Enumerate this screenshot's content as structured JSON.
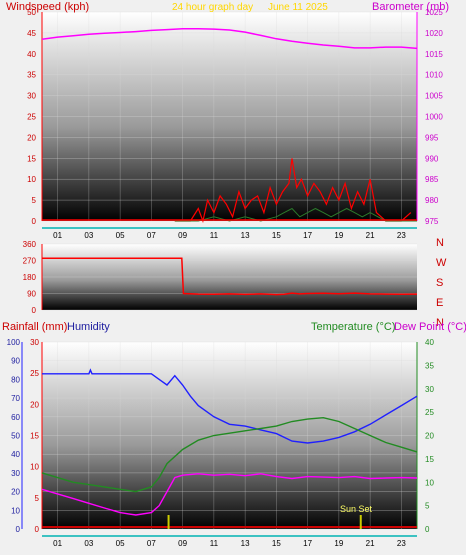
{
  "header": {
    "wind_label": "Windspeed (kph)",
    "title": "24 hour graph day",
    "date": "June 11 2025",
    "baro_label": "Barometer (mb)"
  },
  "bottom_header": {
    "rain_label": "Rainfall (mm)",
    "humidity_label": "Humidity",
    "temp_label": "Temperature (°C)",
    "dew_label": "Dew Point (°C)"
  },
  "colors": {
    "wind": "#ff0000",
    "gust": "#ff0000",
    "barometer": "#ff00ff",
    "direction": "#ff0000",
    "rain": "#cc0000",
    "humidity": "#2020ff",
    "temperature": "#228b22",
    "dew_point": "#ff00ff",
    "sun": "#cccc00",
    "title": "#ffd700",
    "axis_teal": "#00b3b3"
  },
  "chart_data": [
    {
      "type": "line",
      "title": "24 hour graph day",
      "subtitle": "June 11 2025",
      "x_tick_labels": [
        "01",
        "03",
        "05",
        "07",
        "09",
        "11",
        "13",
        "15",
        "17",
        "19",
        "21",
        "23"
      ],
      "xlim": [
        0,
        24
      ],
      "ylabel": "Windspeed (kph)",
      "ylim": [
        0,
        50
      ],
      "y_ticks": [
        0,
        5,
        10,
        15,
        20,
        25,
        30,
        35,
        40,
        45,
        50
      ],
      "y2label": "Barometer (mb)",
      "y2lim": [
        975,
        1025
      ],
      "y2_ticks": [
        975,
        980,
        985,
        990,
        995,
        1000,
        1005,
        1010,
        1015,
        1020,
        1025
      ],
      "grid": true,
      "series": [
        {
          "name": "Barometer (mb)",
          "axis": "right",
          "x": [
            0,
            1,
            2,
            3,
            4,
            5,
            6,
            7,
            8,
            9,
            10,
            11,
            12,
            13,
            14,
            15,
            16,
            17,
            18,
            19,
            20,
            21,
            22,
            23,
            24
          ],
          "values": [
            1018.5,
            1019,
            1019.3,
            1019.7,
            1019.9,
            1020.1,
            1020.3,
            1020.6,
            1020.8,
            1021,
            1021,
            1020.9,
            1020.7,
            1020.2,
            1019.4,
            1018.6,
            1018,
            1017.5,
            1017.1,
            1016.8,
            1016.4,
            1016.4,
            1016.6,
            1016.6,
            1016.3
          ]
        },
        {
          "name": "Wind gust",
          "axis": "left",
          "x": [
            8.5,
            9,
            9.5,
            10,
            10.3,
            10.6,
            11,
            11.4,
            11.8,
            12.2,
            12.6,
            13,
            13.4,
            13.8,
            14.2,
            14.6,
            15,
            15.4,
            15.8,
            16,
            16.3,
            16.6,
            17,
            17.4,
            17.8,
            18.2,
            18.6,
            19,
            19.4,
            19.8,
            20.2,
            20.6,
            21,
            21.4,
            22,
            23,
            23.6
          ],
          "values": [
            0,
            0,
            0,
            3,
            0,
            5,
            2,
            6,
            4,
            1,
            7,
            3,
            5,
            6,
            2,
            8,
            4,
            7,
            9,
            15,
            8,
            10,
            6,
            9,
            7,
            4,
            8,
            5,
            9,
            3,
            7,
            4,
            10,
            2,
            0,
            0,
            2
          ]
        },
        {
          "name": "Wind speed",
          "axis": "left",
          "x": [
            8.5,
            10,
            11,
            12,
            13,
            14,
            15,
            15.5,
            16,
            16.5,
            17,
            17.5,
            18,
            18.5,
            19,
            19.5,
            20,
            20.5,
            21,
            21.5,
            22,
            24
          ],
          "values": [
            0,
            0,
            1,
            0,
            1,
            0,
            1,
            2,
            3,
            1,
            2,
            3,
            2,
            1,
            2,
            3,
            2,
            1,
            2,
            1,
            0,
            0
          ]
        }
      ]
    },
    {
      "type": "line",
      "ylim": [
        0,
        360
      ],
      "y_tick_labels": [
        "0",
        "90",
        "180",
        "270",
        "360"
      ],
      "right_labels": [
        "N",
        "W",
        "S",
        "E",
        "N"
      ],
      "xlim": [
        0,
        24
      ],
      "grid": true,
      "series": [
        {
          "name": "Wind direction",
          "x": [
            0,
            8.95,
            9.05,
            10,
            11,
            12,
            13,
            14,
            15,
            15.5,
            16,
            16.5,
            17,
            18,
            19,
            20,
            21,
            22,
            23,
            24
          ],
          "values": [
            282,
            282,
            90,
            87,
            86,
            88,
            85,
            88,
            84,
            86,
            92,
            88,
            90,
            91,
            89,
            92,
            88,
            87,
            86,
            87
          ]
        }
      ]
    },
    {
      "type": "line",
      "x_tick_labels": [
        "01",
        "03",
        "05",
        "07",
        "09",
        "11",
        "13",
        "15",
        "17",
        "19",
        "21",
        "23"
      ],
      "xlim": [
        0,
        24
      ],
      "y_label_humidity": "Humidity",
      "y_humidity_lim": [
        0,
        100
      ],
      "y_humidity_ticks": [
        0,
        10,
        20,
        30,
        40,
        50,
        60,
        70,
        80,
        90,
        100
      ],
      "y_rain_label": "Rainfall (mm)",
      "y_rain_lim": [
        0,
        30
      ],
      "y_rain_ticks": [
        0,
        5,
        10,
        15,
        20,
        25,
        30
      ],
      "y2label": "Temperature (°C)",
      "y2lim": [
        0,
        40
      ],
      "y2_ticks": [
        0,
        5,
        10,
        15,
        20,
        25,
        30,
        35,
        40
      ],
      "annotations": [
        "Sun Set"
      ],
      "grid": true,
      "series": [
        {
          "name": "Humidity",
          "axis": "humidity",
          "x": [
            0,
            3,
            3.1,
            3.2,
            7,
            7.5,
            8,
            8.5,
            9,
            9.5,
            10,
            11,
            12,
            13,
            14,
            15,
            16,
            17,
            18,
            19,
            20,
            21,
            22,
            23,
            24
          ],
          "values": [
            83,
            83,
            85,
            83,
            83,
            80,
            77,
            82,
            77,
            71,
            66,
            60,
            56,
            55,
            53,
            51,
            47,
            46,
            47,
            49,
            52,
            56,
            61,
            66,
            71
          ]
        },
        {
          "name": "Temperature (°C)",
          "axis": "right",
          "x": [
            0,
            1,
            2,
            3,
            4,
            5,
            6,
            7,
            7.5,
            8,
            9,
            10,
            11,
            12,
            13,
            14,
            15,
            16,
            17,
            18,
            19,
            20,
            21,
            22,
            23,
            24
          ],
          "values": [
            12,
            11,
            10,
            9.5,
            9,
            8.5,
            8,
            9,
            11,
            14,
            17,
            19,
            20,
            20.5,
            21,
            21.5,
            22,
            23,
            23.5,
            23.8,
            23,
            21.5,
            20,
            18.5,
            17.5,
            16.5
          ]
        },
        {
          "name": "Dew Point (°C)",
          "axis": "right",
          "x": [
            0,
            1,
            2,
            3,
            4,
            5,
            6,
            7,
            7.5,
            8,
            8.5,
            9,
            10,
            11,
            12,
            13,
            14,
            15,
            16,
            17,
            18,
            19,
            20,
            21,
            22,
            23,
            24
          ],
          "values": [
            8.5,
            7.5,
            6.5,
            5.5,
            4.5,
            3.5,
            3,
            3.5,
            5,
            8,
            11,
            11.5,
            11.8,
            11.5,
            11.7,
            11.4,
            11.8,
            11.2,
            10.8,
            11.2,
            11.1,
            11,
            11.2,
            10.8,
            10.9,
            11,
            10.9
          ]
        },
        {
          "name": "Rainfall (mm)",
          "axis": "rain",
          "x": [
            0,
            24
          ],
          "values": [
            0,
            0
          ]
        }
      ],
      "markers": [
        {
          "name": "sunrise",
          "x": 8.1
        },
        {
          "name": "sunset",
          "x": 20.4
        }
      ]
    }
  ]
}
